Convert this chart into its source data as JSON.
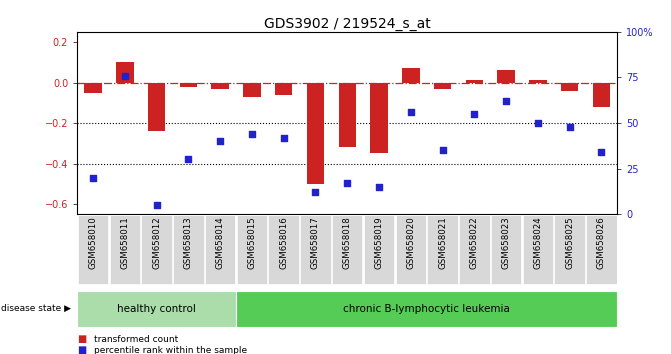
{
  "title": "GDS3902 / 219524_s_at",
  "samples": [
    "GSM658010",
    "GSM658011",
    "GSM658012",
    "GSM658013",
    "GSM658014",
    "GSM658015",
    "GSM658016",
    "GSM658017",
    "GSM658018",
    "GSM658019",
    "GSM658020",
    "GSM658021",
    "GSM658022",
    "GSM658023",
    "GSM658024",
    "GSM658025",
    "GSM658026"
  ],
  "bar_values": [
    -0.05,
    0.1,
    -0.24,
    -0.02,
    -0.03,
    -0.07,
    -0.06,
    -0.5,
    -0.32,
    -0.35,
    0.07,
    -0.03,
    0.01,
    0.06,
    0.01,
    -0.04,
    -0.12
  ],
  "dot_values": [
    20,
    76,
    5,
    30,
    40,
    44,
    42,
    12,
    17,
    15,
    56,
    35,
    55,
    62,
    50,
    48,
    34
  ],
  "bar_color": "#cc2222",
  "dot_color": "#2222cc",
  "ylim": [
    -0.65,
    0.25
  ],
  "y2lim": [
    0,
    100
  ],
  "yticks": [
    -0.6,
    -0.4,
    -0.2,
    0.0,
    0.2
  ],
  "y2ticks": [
    0,
    25,
    50,
    75,
    100
  ],
  "y2ticklabels": [
    "0",
    "25",
    "50",
    "75",
    "100%"
  ],
  "hline_y": 0.0,
  "dotted_lines": [
    -0.2,
    -0.4
  ],
  "hc_count": 5,
  "lk_count": 12,
  "healthy_color": "#aaddaa",
  "leukemia_color": "#55cc55",
  "disease_label": "disease state",
  "healthy_label": "healthy control",
  "leukemia_label": "chronic B-lymphocytic leukemia",
  "legend_bar_label": "transformed count",
  "legend_dot_label": "percentile rank within the sample",
  "title_fontsize": 10,
  "tick_fontsize": 7,
  "label_fontsize": 7.5
}
